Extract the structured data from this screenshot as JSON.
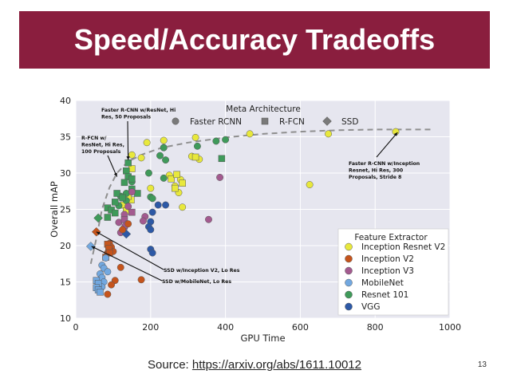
{
  "slide": {
    "title": "Speed/Accuracy Tradeoffs",
    "source_label": "Source: ",
    "source_link": "https://arxiv.org/abs/1611.10012",
    "page_number": "13"
  },
  "chart_data": {
    "type": "scatter",
    "title": "",
    "xlabel": "GPU Time",
    "ylabel": "Overall mAP",
    "xlim": [
      0,
      1000
    ],
    "ylim": [
      10,
      40
    ],
    "xticks": [
      0,
      200,
      400,
      600,
      800,
      1000
    ],
    "yticks": [
      10,
      15,
      20,
      25,
      30,
      35,
      40
    ],
    "grid": true,
    "background": "#e6e6ef",
    "meta_legend": {
      "title": "Meta Architecture",
      "entries": [
        {
          "label": "Faster RCNN",
          "marker": "circle"
        },
        {
          "label": "R-FCN",
          "marker": "square"
        },
        {
          "label": "SSD",
          "marker": "diamond"
        }
      ]
    },
    "extractor_legend": {
      "title": "Feature Extractor",
      "entries": [
        {
          "label": "Inception Resnet V2",
          "color": "#e8e83c"
        },
        {
          "label": "Inception V2",
          "color": "#c5541c"
        },
        {
          "label": "Inception V3",
          "color": "#a35a8f"
        },
        {
          "label": "MobileNet",
          "color": "#72a8e0"
        },
        {
          "label": "Resnet 101",
          "color": "#3f9a5a"
        },
        {
          "label": "VGG",
          "color": "#2d59a6"
        }
      ]
    },
    "frontier": [
      [
        40,
        17.5
      ],
      [
        55,
        21
      ],
      [
        70,
        25
      ],
      [
        90,
        28
      ],
      [
        110,
        30
      ],
      [
        140,
        31.6
      ],
      [
        180,
        32.6
      ],
      [
        230,
        33.5
      ],
      [
        300,
        34.2
      ],
      [
        400,
        34.9
      ],
      [
        500,
        35.4
      ],
      [
        600,
        35.7
      ],
      [
        700,
        35.9
      ],
      [
        800,
        36
      ],
      [
        950,
        36
      ]
    ],
    "points": [
      {
        "x": 855,
        "y": 35.7,
        "s": "circle",
        "f": "Inception Resnet V2"
      },
      {
        "x": 675,
        "y": 35.4,
        "s": "circle",
        "f": "Inception Resnet V2"
      },
      {
        "x": 465,
        "y": 35.4,
        "s": "circle",
        "f": "Inception Resnet V2"
      },
      {
        "x": 625,
        "y": 28.4,
        "s": "circle",
        "f": "Inception Resnet V2"
      },
      {
        "x": 320,
        "y": 34.9,
        "s": "circle",
        "f": "Inception Resnet V2"
      },
      {
        "x": 235,
        "y": 34.5,
        "s": "circle",
        "f": "Inception Resnet V2"
      },
      {
        "x": 190,
        "y": 34.2,
        "s": "circle",
        "f": "Inception Resnet V2"
      },
      {
        "x": 150,
        "y": 32.5,
        "s": "circle",
        "f": "Inception Resnet V2"
      },
      {
        "x": 175,
        "y": 32.1,
        "s": "circle",
        "f": "Inception Resnet V2"
      },
      {
        "x": 310,
        "y": 32.3,
        "s": "circle",
        "f": "Inception Resnet V2"
      },
      {
        "x": 330,
        "y": 31.9,
        "s": "circle",
        "f": "Inception Resnet V2"
      },
      {
        "x": 250,
        "y": 29.7,
        "s": "circle",
        "f": "Inception Resnet V2"
      },
      {
        "x": 280,
        "y": 29.1,
        "s": "circle",
        "f": "Inception Resnet V2"
      },
      {
        "x": 265,
        "y": 28.2,
        "s": "circle",
        "f": "Inception Resnet V2"
      },
      {
        "x": 275,
        "y": 27.3,
        "s": "circle",
        "f": "Inception Resnet V2"
      },
      {
        "x": 200,
        "y": 27.9,
        "s": "circle",
        "f": "Inception Resnet V2"
      },
      {
        "x": 285,
        "y": 25.3,
        "s": "circle",
        "f": "Inception Resnet V2"
      },
      {
        "x": 255,
        "y": 29.2,
        "s": "square",
        "f": "Inception Resnet V2"
      },
      {
        "x": 265,
        "y": 27.9,
        "s": "square",
        "f": "Inception Resnet V2"
      },
      {
        "x": 270,
        "y": 29.8,
        "s": "square",
        "f": "Inception Resnet V2"
      },
      {
        "x": 285,
        "y": 28.6,
        "s": "square",
        "f": "Inception Resnet V2"
      },
      {
        "x": 320,
        "y": 32.2,
        "s": "square",
        "f": "Inception Resnet V2"
      },
      {
        "x": 150,
        "y": 30.6,
        "s": "square",
        "f": "Inception Resnet V2"
      },
      {
        "x": 138,
        "y": 27.1,
        "s": "square",
        "f": "Inception Resnet V2"
      },
      {
        "x": 148,
        "y": 26.3,
        "s": "square",
        "f": "Inception Resnet V2"
      },
      {
        "x": 128,
        "y": 25.6,
        "s": "square",
        "f": "Inception Resnet V2"
      },
      {
        "x": 140,
        "y": 26.8,
        "s": "square",
        "f": "Inception Resnet V2"
      },
      {
        "x": 135,
        "y": 24.8,
        "s": "square",
        "f": "Inception Resnet V2"
      },
      {
        "x": 400,
        "y": 34.6,
        "s": "circle",
        "f": "Resnet 101"
      },
      {
        "x": 375,
        "y": 34.4,
        "s": "circle",
        "f": "Resnet 101"
      },
      {
        "x": 325,
        "y": 33.7,
        "s": "circle",
        "f": "Resnet 101"
      },
      {
        "x": 235,
        "y": 33.5,
        "s": "circle",
        "f": "Resnet 101"
      },
      {
        "x": 235,
        "y": 33.5,
        "s": "circle",
        "f": "Resnet 101"
      },
      {
        "x": 225,
        "y": 32.4,
        "s": "circle",
        "f": "Resnet 101"
      },
      {
        "x": 240,
        "y": 31.8,
        "s": "circle",
        "f": "Resnet 101"
      },
      {
        "x": 195,
        "y": 30.0,
        "s": "circle",
        "f": "Resnet 101"
      },
      {
        "x": 235,
        "y": 29.3,
        "s": "circle",
        "f": "Resnet 101"
      },
      {
        "x": 200,
        "y": 26.7,
        "s": "circle",
        "f": "Resnet 101"
      },
      {
        "x": 205,
        "y": 26.5,
        "s": "circle",
        "f": "Resnet 101"
      },
      {
        "x": 150,
        "y": 28.8,
        "s": "circle",
        "f": "Resnet 101"
      },
      {
        "x": 135,
        "y": 27.2,
        "s": "circle",
        "f": "Resnet 101"
      },
      {
        "x": 135,
        "y": 26.2,
        "s": "circle",
        "f": "Resnet 101"
      },
      {
        "x": 120,
        "y": 26.8,
        "s": "circle",
        "f": "Resnet 101"
      },
      {
        "x": 115,
        "y": 25.5,
        "s": "circle",
        "f": "Resnet 101"
      },
      {
        "x": 390,
        "y": 32.0,
        "s": "square",
        "f": "Resnet 101"
      },
      {
        "x": 140,
        "y": 31.4,
        "s": "square",
        "f": "Resnet 101"
      },
      {
        "x": 135,
        "y": 30.3,
        "s": "square",
        "f": "Resnet 101"
      },
      {
        "x": 140,
        "y": 29.5,
        "s": "square",
        "f": "Resnet 101"
      },
      {
        "x": 150,
        "y": 29.2,
        "s": "square",
        "f": "Resnet 101"
      },
      {
        "x": 130,
        "y": 28.7,
        "s": "square",
        "f": "Resnet 101"
      },
      {
        "x": 150,
        "y": 27.8,
        "s": "square",
        "f": "Resnet 101"
      },
      {
        "x": 165,
        "y": 27.2,
        "s": "square",
        "f": "Resnet 101"
      },
      {
        "x": 110,
        "y": 27.2,
        "s": "square",
        "f": "Resnet 101"
      },
      {
        "x": 125,
        "y": 26.6,
        "s": "square",
        "f": "Resnet 101"
      },
      {
        "x": 105,
        "y": 26.0,
        "s": "square",
        "f": "Resnet 101"
      },
      {
        "x": 85,
        "y": 25.2,
        "s": "square",
        "f": "Resnet 101"
      },
      {
        "x": 95,
        "y": 24.9,
        "s": "square",
        "f": "Resnet 101"
      },
      {
        "x": 105,
        "y": 24.5,
        "s": "square",
        "f": "Resnet 101"
      },
      {
        "x": 85,
        "y": 23.9,
        "s": "square",
        "f": "Resnet 101"
      },
      {
        "x": 60,
        "y": 23.8,
        "s": "diamond",
        "f": "Resnet 101"
      },
      {
        "x": 385,
        "y": 29.4,
        "s": "circle",
        "f": "Inception V3"
      },
      {
        "x": 150,
        "y": 27.4,
        "s": "circle",
        "f": "Inception V3"
      },
      {
        "x": 140,
        "y": 25.4,
        "s": "circle",
        "f": "Inception V3"
      },
      {
        "x": 130,
        "y": 24.3,
        "s": "circle",
        "f": "Inception V3"
      },
      {
        "x": 185,
        "y": 24.0,
        "s": "circle",
        "f": "Inception V3"
      },
      {
        "x": 180,
        "y": 23.4,
        "s": "circle",
        "f": "Inception V3"
      },
      {
        "x": 355,
        "y": 23.6,
        "s": "circle",
        "f": "Inception V3"
      },
      {
        "x": 130,
        "y": 22.5,
        "s": "circle",
        "f": "Inception V3"
      },
      {
        "x": 115,
        "y": 23.2,
        "s": "circle",
        "f": "Inception V3"
      },
      {
        "x": 120,
        "y": 21.8,
        "s": "circle",
        "f": "Inception V3"
      },
      {
        "x": 150,
        "y": 24.6,
        "s": "square",
        "f": "Inception V3"
      },
      {
        "x": 130,
        "y": 23.6,
        "s": "square",
        "f": "Inception V3"
      },
      {
        "x": 135,
        "y": 22.9,
        "s": "diamond",
        "f": "Inception V3"
      },
      {
        "x": 220,
        "y": 25.6,
        "s": "circle",
        "f": "VGG"
      },
      {
        "x": 240,
        "y": 25.6,
        "s": "circle",
        "f": "VGG"
      },
      {
        "x": 205,
        "y": 24.6,
        "s": "circle",
        "f": "VGG"
      },
      {
        "x": 200,
        "y": 23.3,
        "s": "circle",
        "f": "VGG"
      },
      {
        "x": 195,
        "y": 22.6,
        "s": "circle",
        "f": "VGG"
      },
      {
        "x": 200,
        "y": 22.2,
        "s": "circle",
        "f": "VGG"
      },
      {
        "x": 200,
        "y": 19.5,
        "s": "circle",
        "f": "VGG"
      },
      {
        "x": 205,
        "y": 19.0,
        "s": "circle",
        "f": "VGG"
      },
      {
        "x": 135,
        "y": 21.6,
        "s": "diamond",
        "f": "VGG"
      },
      {
        "x": 140,
        "y": 23.0,
        "s": "circle",
        "f": "Inception V2"
      },
      {
        "x": 125,
        "y": 22.2,
        "s": "circle",
        "f": "Inception V2"
      },
      {
        "x": 90,
        "y": 20.3,
        "s": "circle",
        "f": "Inception V2"
      },
      {
        "x": 95,
        "y": 19.8,
        "s": "circle",
        "f": "Inception V2"
      },
      {
        "x": 100,
        "y": 19.2,
        "s": "circle",
        "f": "Inception V2"
      },
      {
        "x": 85,
        "y": 19.0,
        "s": "circle",
        "f": "Inception V2"
      },
      {
        "x": 120,
        "y": 17.0,
        "s": "circle",
        "f": "Inception V2"
      },
      {
        "x": 105,
        "y": 15.2,
        "s": "circle",
        "f": "Inception V2"
      },
      {
        "x": 95,
        "y": 14.6,
        "s": "circle",
        "f": "Inception V2"
      },
      {
        "x": 85,
        "y": 13.3,
        "s": "circle",
        "f": "Inception V2"
      },
      {
        "x": 175,
        "y": 15.3,
        "s": "circle",
        "f": "Inception V2"
      },
      {
        "x": 85,
        "y": 20.2,
        "s": "square",
        "f": "Inception V2"
      },
      {
        "x": 88,
        "y": 19.6,
        "s": "square",
        "f": "Inception V2"
      },
      {
        "x": 90,
        "y": 19.0,
        "s": "square",
        "f": "Inception V2"
      },
      {
        "x": 80,
        "y": 18.4,
        "s": "square",
        "f": "Inception V2"
      },
      {
        "x": 55,
        "y": 21.9,
        "s": "diamond",
        "f": "Inception V2"
      },
      {
        "x": 40,
        "y": 19.9,
        "s": "diamond",
        "f": "MobileNet"
      },
      {
        "x": 80,
        "y": 18.3,
        "s": "circle",
        "f": "MobileNet"
      },
      {
        "x": 70,
        "y": 17.3,
        "s": "circle",
        "f": "MobileNet"
      },
      {
        "x": 75,
        "y": 16.9,
        "s": "circle",
        "f": "MobileNet"
      },
      {
        "x": 85,
        "y": 16.4,
        "s": "circle",
        "f": "MobileNet"
      },
      {
        "x": 65,
        "y": 16.1,
        "s": "circle",
        "f": "MobileNet"
      },
      {
        "x": 70,
        "y": 15.6,
        "s": "circle",
        "f": "MobileNet"
      },
      {
        "x": 75,
        "y": 15.0,
        "s": "circle",
        "f": "MobileNet"
      },
      {
        "x": 60,
        "y": 14.6,
        "s": "circle",
        "f": "MobileNet"
      },
      {
        "x": 70,
        "y": 14.3,
        "s": "circle",
        "f": "MobileNet"
      },
      {
        "x": 55,
        "y": 15.2,
        "s": "square",
        "f": "MobileNet"
      },
      {
        "x": 60,
        "y": 14.8,
        "s": "square",
        "f": "MobileNet"
      },
      {
        "x": 55,
        "y": 14.2,
        "s": "square",
        "f": "MobileNet"
      },
      {
        "x": 60,
        "y": 13.9,
        "s": "square",
        "f": "MobileNet"
      },
      {
        "x": 65,
        "y": 13.6,
        "s": "square",
        "f": "MobileNet"
      }
    ],
    "annotations": [
      {
        "lines": [
          "Faster R-CNN w/ResNet, Hi",
          "Res, 50 Proposals"
        ],
        "target": [
          140,
          31.8
        ]
      },
      {
        "lines": [
          "R-FCN w/",
          "ResNet, Hi Res,",
          "100 Proposals"
        ],
        "target": [
          110,
          29.5
        ]
      },
      {
        "lines": [
          "Faster R-CNN w/Inception",
          "Resnet, Hi Res, 300",
          "Proposals, Stride 8"
        ],
        "target": [
          860,
          35.6
        ]
      },
      {
        "lines": [
          "SSD w/Inception V2, Lo Res"
        ],
        "target": [
          55,
          21.9
        ]
      },
      {
        "lines": [
          "SSD w/MobileNet, Lo Res"
        ],
        "target": [
          42,
          19.9
        ]
      }
    ]
  }
}
